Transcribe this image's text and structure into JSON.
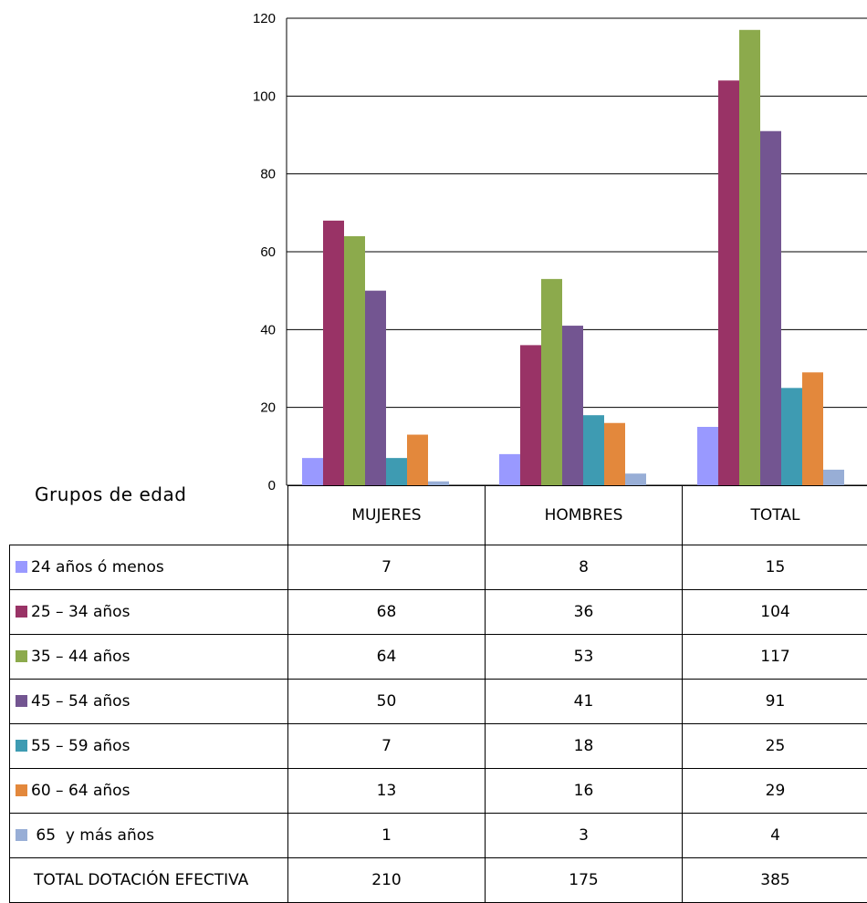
{
  "chart_data": {
    "type": "bar",
    "categories": [
      "MUJERES",
      "HOMBRES",
      "TOTAL"
    ],
    "ylim": [
      0,
      120
    ],
    "yticks": [
      "0",
      "20",
      "40",
      "60",
      "80",
      "100",
      "120"
    ],
    "grid": true,
    "series": [
      {
        "name": "24 años ó menos",
        "color": "#9999ff",
        "values": [
          7,
          8,
          15
        ]
      },
      {
        "name": "25 – 34 años",
        "color": "#993366",
        "values": [
          68,
          36,
          104
        ]
      },
      {
        "name": "35 – 44 años",
        "color": "#8caa4c",
        "values": [
          64,
          53,
          117
        ]
      },
      {
        "name": "45 – 54 años",
        "color": "#735591",
        "values": [
          50,
          41,
          91
        ]
      },
      {
        "name": "55 – 59 años",
        "color": "#3e9bb2",
        "values": [
          7,
          18,
          25
        ]
      },
      {
        "name": "60 – 64 años",
        "color": "#e3883c",
        "values": [
          13,
          16,
          29
        ]
      },
      {
        "name": " 65  y más años",
        "color": "#98aed6",
        "values": [
          1,
          3,
          4
        ]
      }
    ]
  },
  "table": {
    "title": "Grupos de edad",
    "columns": [
      "MUJERES",
      "HOMBRES",
      "TOTAL"
    ],
    "total_row": {
      "label": "TOTAL DOTACIÓN EFECTIVA",
      "values": [
        "210",
        "175",
        "385"
      ]
    }
  }
}
